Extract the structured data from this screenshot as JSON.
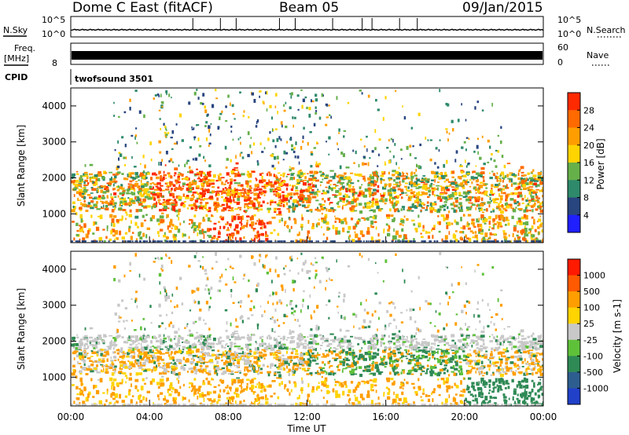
{
  "header": {
    "station": "Dome C East (fitACF)",
    "beam": "Beam 05",
    "date": "09/Jan/2015"
  },
  "noise_panel": {
    "left_label": "N.Sky",
    "right_label": "N.Search",
    "left_ticks": [
      "10^5",
      "10^0"
    ],
    "right_ticks": [
      "10^5",
      "10^0"
    ]
  },
  "freq_panel": {
    "left_label_1": "Freq.",
    "left_label_2": "[MHz]",
    "right_label": "Nave",
    "left_tick": "8",
    "right_ticks": [
      "60",
      "0"
    ]
  },
  "cpid_panel": {
    "label": "CPID",
    "value": "twofsound 3501"
  },
  "chart_data": [
    {
      "type": "heatmap",
      "quantity": "Power",
      "colorbar_label": "Power [dB]",
      "colorbar_ticks": [
        "4",
        "8",
        "12",
        "16",
        "20",
        "24",
        "28"
      ],
      "colorbar_colors": [
        "#1f1fff",
        "#28457f",
        "#2e8a6a",
        "#66b04a",
        "#ffd400",
        "#ff9e00",
        "#ff6a00",
        "#ff2a00"
      ],
      "xlabel": "",
      "ylabel": "Slant Range [km]",
      "ylim": [
        200,
        4500
      ],
      "y_ticks": [
        "1000",
        "2000",
        "3000",
        "4000"
      ],
      "xlim": [
        0,
        24
      ]
    },
    {
      "type": "heatmap",
      "quantity": "Velocity",
      "colorbar_label": "Velocity [m s-1]",
      "colorbar_ticks": [
        "1000",
        "500",
        "100",
        "25",
        "-25",
        "-100",
        "-500",
        "-1000"
      ],
      "colorbar_colors": [
        "#2141c9",
        "#2e5e8f",
        "#2f8a55",
        "#5fc13a",
        "#c8c8c8",
        "#ffd400",
        "#ff9e00",
        "#ff5a00",
        "#ff1a00"
      ],
      "xlabel": "Time UT",
      "ylabel": "Slant Range [km]",
      "ylim": [
        200,
        4500
      ],
      "y_ticks": [
        "1000",
        "2000",
        "3000",
        "4000"
      ],
      "x_ticks": [
        "00:00",
        "04:00",
        "08:00",
        "12:00",
        "16:00",
        "20:00",
        "00:00"
      ],
      "xlim": [
        0,
        24
      ]
    }
  ]
}
